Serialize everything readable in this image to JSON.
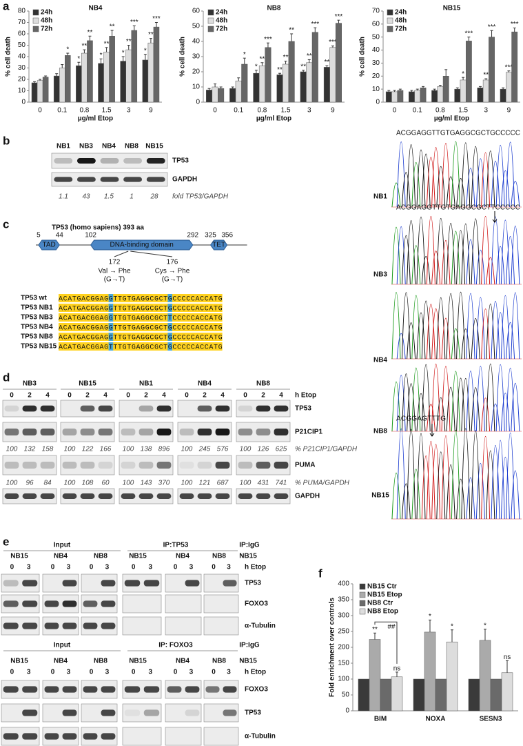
{
  "panel_labels": [
    "a",
    "b",
    "c",
    "d",
    "e",
    "f"
  ],
  "chart_data": [
    {
      "type": "bar",
      "title": "NB4",
      "y_label": "% cell death",
      "x_label": "µg/ml Etop",
      "categories": [
        "0",
        "0.1",
        "0.8",
        "1.5",
        "3",
        "9"
      ],
      "ylim": [
        0,
        80
      ],
      "yticks": [
        0,
        10,
        20,
        30,
        40,
        50,
        60,
        70,
        80
      ],
      "series": [
        {
          "name": "24h",
          "color": "#333333",
          "values": [
            17,
            23,
            32,
            34,
            36,
            37
          ],
          "errors": [
            1,
            2,
            3,
            4,
            4,
            5
          ],
          "annotations": [
            null,
            null,
            "*",
            "*",
            "*",
            "*"
          ]
        },
        {
          "name": "48h",
          "color": "#dddddd",
          "values": [
            19,
            30,
            43,
            44,
            46,
            52
          ],
          "errors": [
            1,
            3,
            3,
            4,
            4,
            4
          ],
          "annotations": [
            null,
            null,
            "**",
            "**",
            "**",
            "**"
          ]
        },
        {
          "name": "72h",
          "color": "#666666",
          "values": [
            22,
            41,
            54,
            58,
            63,
            66
          ],
          "errors": [
            1,
            2,
            4,
            5,
            4,
            4
          ],
          "annotations": [
            null,
            "*",
            "**",
            "**",
            "***",
            "***"
          ]
        }
      ]
    },
    {
      "type": "bar",
      "title": "NB8",
      "y_label": "% cell death",
      "x_label": "µg/ml Etop",
      "categories": [
        "0",
        "0.1",
        "0.8",
        "1.5",
        "3",
        "9"
      ],
      "ylim": [
        0,
        60
      ],
      "yticks": [
        0,
        10,
        20,
        30,
        40,
        50,
        60
      ],
      "series": [
        {
          "name": "24h",
          "color": "#333333",
          "values": [
            8,
            9,
            19,
            18,
            20,
            23
          ],
          "errors": [
            1,
            1,
            2,
            1,
            1,
            1
          ],
          "annotations": [
            null,
            null,
            "*",
            "**",
            "**",
            "**"
          ]
        },
        {
          "name": "48h",
          "color": "#dddddd",
          "values": [
            10,
            14,
            24,
            25,
            26,
            36
          ],
          "errors": [
            2,
            2,
            2,
            2,
            2,
            1
          ],
          "annotations": [
            null,
            null,
            "**",
            "**",
            "**",
            "***"
          ]
        },
        {
          "name": "72h",
          "color": "#666666",
          "values": [
            9,
            25,
            36,
            40,
            46,
            52
          ],
          "errors": [
            1,
            4,
            3,
            5,
            3,
            2
          ],
          "annotations": [
            null,
            "*",
            "***",
            "**",
            "***",
            "***"
          ]
        }
      ]
    },
    {
      "type": "bar",
      "title": "NB15",
      "y_label": "% cell death",
      "x_label": "µg/ml Etop",
      "categories": [
        "0",
        "0.1",
        "0.8",
        "1.5",
        "3",
        "9"
      ],
      "ylim": [
        0,
        70
      ],
      "yticks": [
        0,
        10,
        20,
        30,
        40,
        50,
        60,
        70
      ],
      "series": [
        {
          "name": "24h",
          "color": "#333333",
          "values": [
            8,
            8,
            9,
            10,
            11,
            10
          ],
          "errors": [
            1,
            1,
            1,
            1,
            1,
            1
          ]
        },
        {
          "name": "48h",
          "color": "#dddddd",
          "values": [
            8,
            9,
            12,
            17,
            17,
            23
          ],
          "errors": [
            1,
            1,
            1,
            2,
            1,
            1
          ],
          "annotations": [
            null,
            null,
            null,
            "*",
            "**",
            "***"
          ]
        },
        {
          "name": "72h",
          "color": "#666666",
          "values": [
            9,
            11,
            20,
            47,
            50,
            54
          ],
          "errors": [
            1,
            1,
            5,
            3,
            5,
            3
          ],
          "annotations": [
            null,
            null,
            null,
            "***",
            "***",
            "***"
          ]
        }
      ]
    },
    {
      "type": "bar",
      "y_label": "Fold enrichment over controls",
      "categories": [
        "BIM",
        "NOXA",
        "SESN3"
      ],
      "ylim": [
        0,
        400
      ],
      "yticks": [
        0,
        50,
        100,
        150,
        200,
        250,
        300,
        350,
        400
      ],
      "bracket_annotation": "##",
      "series": [
        {
          "name": "NB15 Ctr",
          "color": "#3a3a3a",
          "values": [
            100,
            100,
            100
          ],
          "errors": [
            0,
            0,
            0
          ]
        },
        {
          "name": "NB15 Etop",
          "color": "#aaaaaa",
          "values": [
            225,
            248,
            222
          ],
          "errors": [
            20,
            38,
            35
          ],
          "annotations": [
            "**",
            "*",
            "*"
          ]
        },
        {
          "name": "NB8 Ctr",
          "color": "#6a6a6a",
          "values": [
            100,
            100,
            100
          ],
          "errors": [
            0,
            0,
            0
          ]
        },
        {
          "name": "NB8 Etop",
          "color": "#dddddd",
          "values": [
            107,
            217,
            120
          ],
          "errors": [
            15,
            38,
            38
          ],
          "annotations": [
            "ns",
            "*",
            "ns"
          ]
        }
      ]
    }
  ],
  "panel_b": {
    "lanes": [
      "NB1",
      "NB3",
      "NB4",
      "NB8",
      "NB15"
    ],
    "rows": [
      "TP53",
      "GAPDH"
    ],
    "fold_values": [
      1.1,
      43,
      1.5,
      1,
      28
    ],
    "fold_label": "fold TP53/GAPDH"
  },
  "panel_c": {
    "title": "TP53 (homo sapiens) 393 aa",
    "domains": [
      {
        "label": "TAD",
        "start": 5,
        "end": 44
      },
      {
        "label": "DNA-binding domain",
        "start": 102,
        "end": 292
      },
      {
        "label": "TET",
        "start": 325,
        "end": 356
      }
    ],
    "mutations": [
      {
        "position": 172,
        "change": "Val → Phe",
        "base": "(G→T)"
      },
      {
        "position": 176,
        "change": "Cys → Phe",
        "base": "(G→T)"
      }
    ],
    "sequences": [
      {
        "name": "TP53 wt",
        "seq": "ACATGACGGAGGTTGTGAGGCGCTGCCCCCACCATG"
      },
      {
        "name": "TP53 NB1",
        "seq": "ACATGACGGAGGTTGTGAGGCGCTGCCCCCACCATG"
      },
      {
        "name": "TP53 NB3",
        "seq": "ACATGACGGAGGTTGTGAGGCGCTTCCCCCACCATG"
      },
      {
        "name": "TP53 NB4",
        "seq": "ACATGACGGAGGTTGTGAGGCGCTGCCCCCACCATG"
      },
      {
        "name": "TP53 NB8",
        "seq": "ACATGACGGAGGTTGTGAGGCGCTGCCCCCACCATG"
      },
      {
        "name": "TP53 NB15",
        "seq": "ACATGACGGAGTTTGTGAGGCGCTGCCCCCACCATG"
      }
    ]
  },
  "chromatograms": [
    {
      "label": "NB1",
      "sequence": "ACGGAGGTTGTGAGGCGCTGCCCCC"
    },
    {
      "label": "NB3",
      "sequence": "ACGGAGGTTGTGAGGCGCTTCCCCC"
    },
    {
      "label": "NB4"
    },
    {
      "label": "NB8"
    },
    {
      "label": "NB15",
      "sequence": "ACGGAGTTTG"
    }
  ],
  "panel_d": {
    "groups": [
      "NB3",
      "NB15",
      "NB1",
      "NB4",
      "NB8"
    ],
    "times": [
      0,
      2,
      4
    ],
    "time_unit": "h Etop",
    "rows": [
      "TP53",
      "P21CIP1",
      "PUMA",
      "GAPDH"
    ],
    "p21_values": [
      [
        100,
        132,
        158
      ],
      [
        100,
        122,
        166
      ],
      [
        100,
        138,
        896
      ],
      [
        100,
        245,
        576
      ],
      [
        100,
        126,
        625
      ]
    ],
    "p21_label": "% P21CIP1/GAPDH",
    "puma_values": [
      [
        100,
        96,
        84
      ],
      [
        100,
        108,
        60
      ],
      [
        100,
        143,
        370
      ],
      [
        100,
        121,
        687
      ],
      [
        100,
        431,
        741
      ]
    ],
    "puma_label": "% PUMA/GAPDH"
  },
  "panel_e": [
    {
      "headers": [
        "Input",
        "IP:TP53",
        "IP:IgG"
      ],
      "lanes": [
        "NB15",
        "NB4",
        "NB8",
        "NB15",
        "NB4",
        "NB8",
        "NB15"
      ],
      "times": [
        0,
        3
      ],
      "time_unit": "h Etop",
      "rows": [
        "TP53",
        "FOXO3",
        "α-Tubulin"
      ]
    },
    {
      "headers": [
        "Input",
        "IP: FOXO3",
        "IP:IgG"
      ],
      "lanes": [
        "NB15",
        "NB4",
        "NB8",
        "NB15",
        "NB4",
        "NB8",
        "NB15"
      ],
      "times": [
        0,
        3
      ],
      "time_unit": "h Etop",
      "rows": [
        "FOXO3",
        "TP53",
        "α-Tubulin"
      ]
    }
  ]
}
